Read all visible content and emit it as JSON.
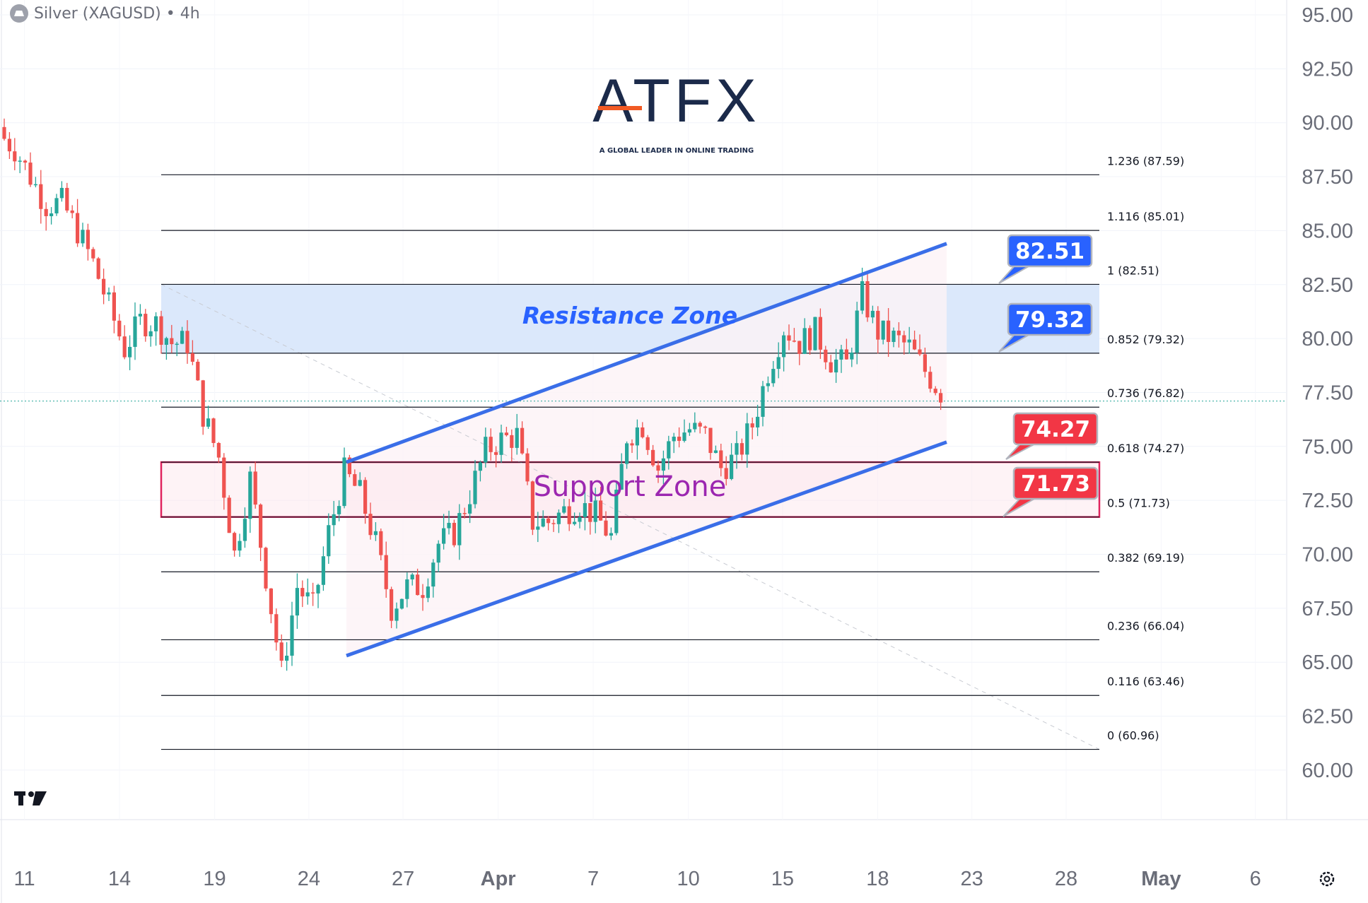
{
  "header": {
    "symbol_title": "Silver (XAGUSD) • 4h",
    "icon": "silver-bars-icon"
  },
  "logo": {
    "brand": "ATFX",
    "tagline": "A GLOBAL LEADER IN ONLINE TRADING"
  },
  "colors": {
    "up": "#26a69a",
    "down": "#ef5350",
    "channel": "#3a6ee8",
    "resistance_fill": "#dbe8fb",
    "support_border": "#e0245e",
    "callout_blue": "#2962ff",
    "callout_red": "#f23645",
    "support_text": "#9c27b0",
    "resistance_text": "#2962ff"
  },
  "chart_data": {
    "type": "candlestick",
    "title": "Silver (XAGUSD) • 4h",
    "ylim": [
      60,
      95
    ],
    "y_ticks": [
      "95.00",
      "92.50",
      "90.00",
      "87.50",
      "85.00",
      "82.50",
      "80.00",
      "77.50",
      "75.00",
      "72.50",
      "70.00",
      "67.50",
      "65.00",
      "62.50",
      "60.00"
    ],
    "x_ticks": [
      "11",
      "14",
      "19",
      "24",
      "27",
      "Apr",
      "7",
      "10",
      "15",
      "18",
      "23",
      "28",
      "May",
      "6"
    ],
    "approx_close_path": [
      89.5,
      88.8,
      87.5,
      86.2,
      86.3,
      85,
      83.5,
      81.5,
      79.5,
      80.8,
      80.7,
      79.8,
      79.8,
      76.5,
      74.5,
      70,
      73.5,
      69,
      64.5,
      68.5,
      67.5,
      71,
      73.8,
      72.8,
      70.5,
      67.5,
      68.5,
      68.5,
      70.5,
      71,
      72.8,
      74.8,
      75.3,
      75.5,
      71.5,
      71.5,
      72,
      72.3,
      71.8,
      70.8,
      75.5,
      76,
      74,
      75.5,
      75.8,
      75.5,
      74,
      74.5,
      76,
      78.5,
      80.5,
      79.8,
      80.3,
      79,
      78.8,
      82,
      80.3,
      80,
      79.6,
      78.5,
      77.5
    ],
    "last_price": 77.1,
    "fib_levels": [
      {
        "ratio": "1.236",
        "price": 87.59,
        "label": "1.236 (87.59)"
      },
      {
        "ratio": "1.116",
        "price": 85.01,
        "label": "1.116 (85.01)"
      },
      {
        "ratio": "1",
        "price": 82.51,
        "label": "1 (82.51)"
      },
      {
        "ratio": "0.852",
        "price": 79.32,
        "label": "0.852 (79.32)"
      },
      {
        "ratio": "0.736",
        "price": 76.82,
        "label": "0.736 (76.82)"
      },
      {
        "ratio": "0.618",
        "price": 74.27,
        "label": "0.618 (74.27)"
      },
      {
        "ratio": "0.5",
        "price": 71.73,
        "label": "0.5 (71.73)"
      },
      {
        "ratio": "0.382",
        "price": 69.19,
        "label": "0.382 (69.19)"
      },
      {
        "ratio": "0.236",
        "price": 66.04,
        "label": "0.236 (66.04)"
      },
      {
        "ratio": "0.116",
        "price": 63.46,
        "label": "0.116 (63.46)"
      },
      {
        "ratio": "0",
        "price": 60.96,
        "label": "0 (60.96)"
      }
    ],
    "zones": [
      {
        "name": "Resistance Zone",
        "from": 79.32,
        "to": 82.51
      },
      {
        "name": "Support Zone",
        "from": 71.73,
        "to": 74.27
      }
    ],
    "channel": {
      "upper": [
        74.27,
        84.4
      ],
      "lower": [
        65.3,
        75.2
      ]
    },
    "callouts": [
      {
        "text": "82.51",
        "price": 82.51,
        "color": "blue"
      },
      {
        "text": "79.32",
        "price": 79.32,
        "color": "blue"
      },
      {
        "text": "74.27",
        "price": 74.27,
        "color": "red"
      },
      {
        "text": "71.73",
        "price": 71.73,
        "color": "red"
      }
    ]
  },
  "footer": {
    "settings_icon": "gear-icon",
    "tv_logo": "tradingview-logo"
  }
}
